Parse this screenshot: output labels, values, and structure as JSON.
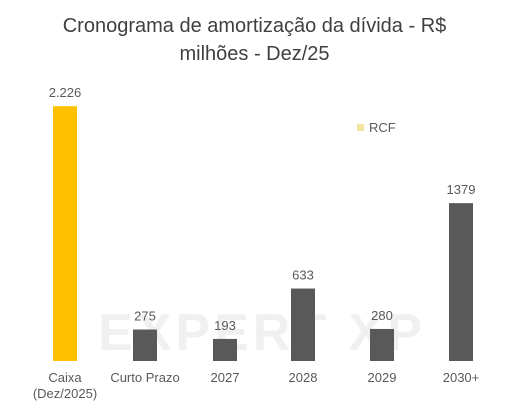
{
  "chart_data": {
    "type": "bar",
    "title_lines": [
      "Cronograma de amortização da dívida - R$",
      "milhões - Dez/25"
    ],
    "categories": [
      [
        "Caixa",
        "(Dez/2025)"
      ],
      [
        "Curto Prazo"
      ],
      [
        "2027"
      ],
      [
        "2028"
      ],
      [
        "2029"
      ],
      [
        "2030+"
      ]
    ],
    "values": [
      2226,
      275,
      193,
      633,
      280,
      1379
    ],
    "value_labels": [
      "2.226",
      "275",
      "193",
      "633",
      "280",
      "1379"
    ],
    "bar_colors": [
      "#FFC000",
      "#595959",
      "#595959",
      "#595959",
      "#595959",
      "#595959"
    ],
    "ylim": [
      0,
      2280
    ],
    "grid": false,
    "legend": {
      "position": "top-right",
      "entries": [
        {
          "label": "RCF",
          "color": "#F5E3A0"
        }
      ]
    },
    "watermark_text": "EXPERT XP"
  }
}
